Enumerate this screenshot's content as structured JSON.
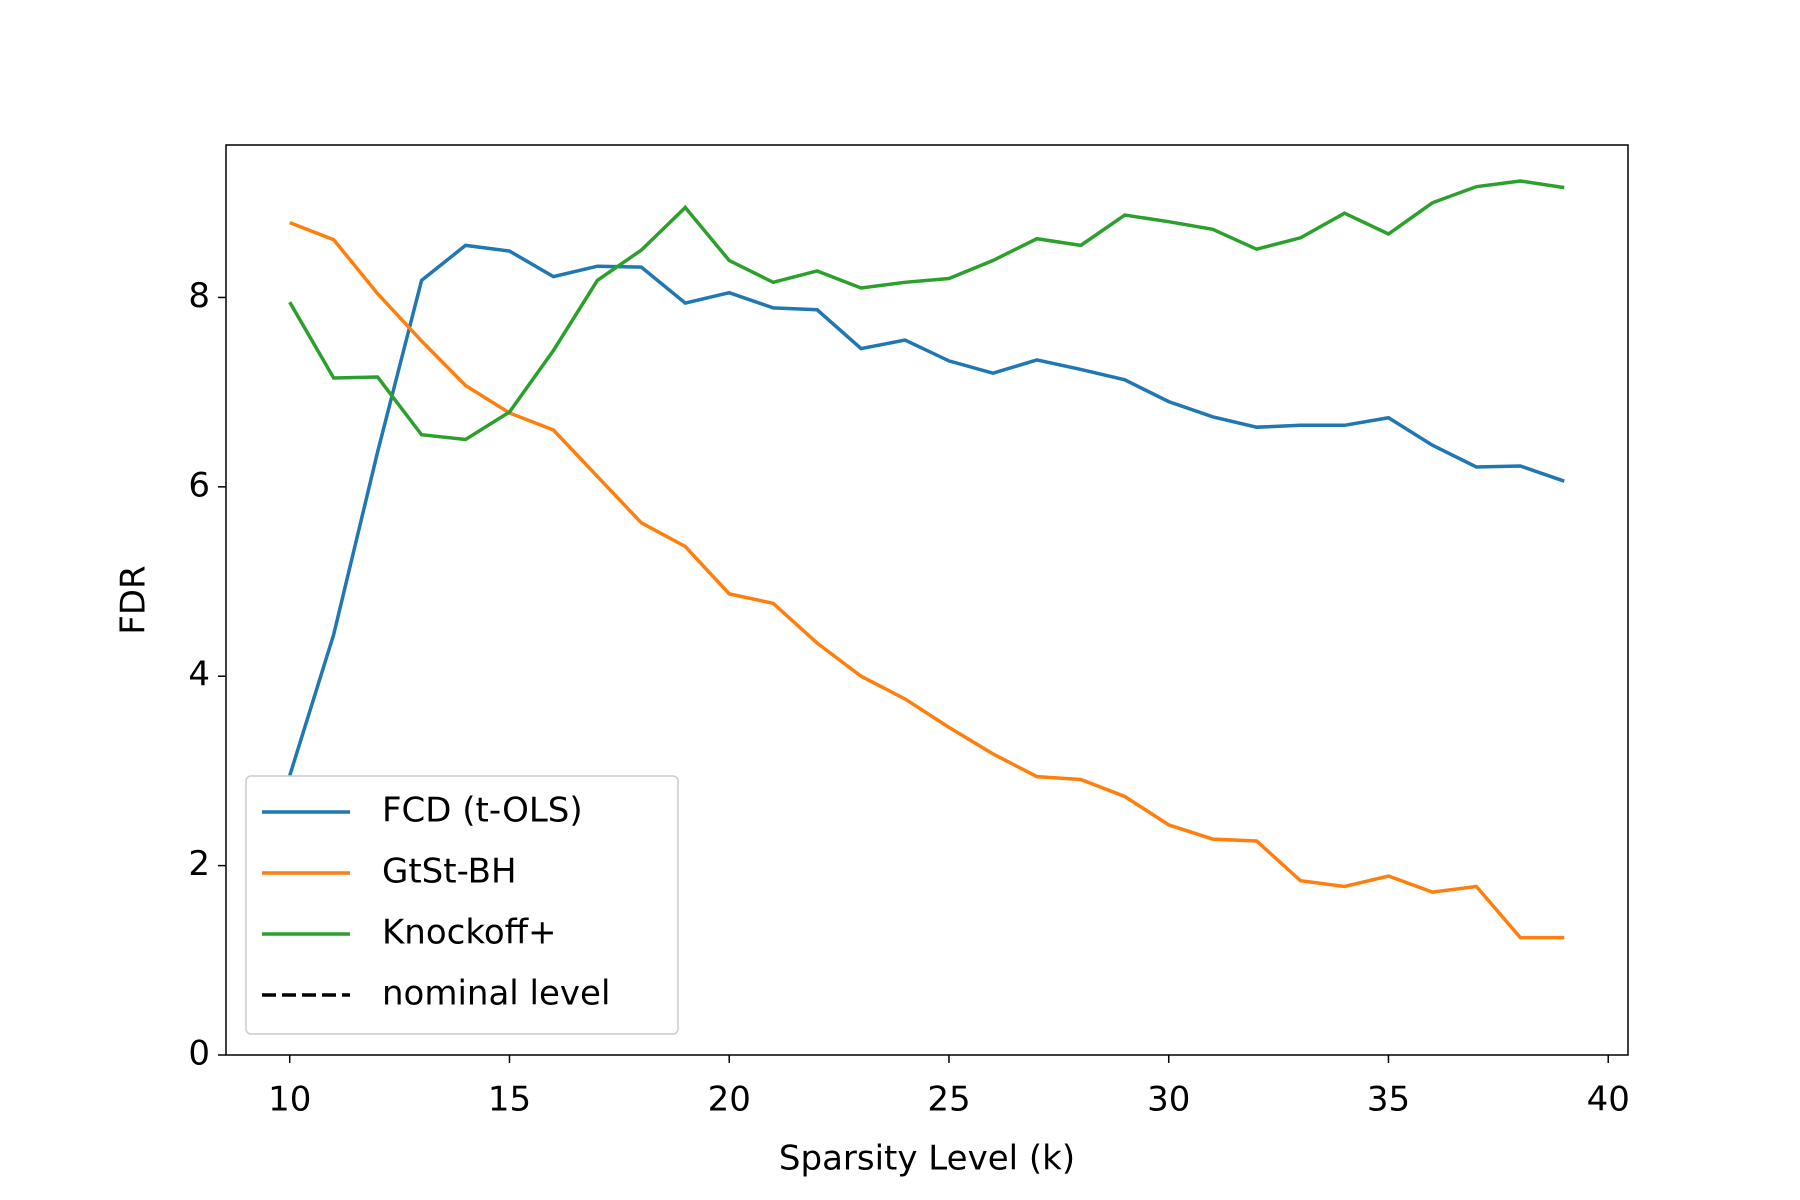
{
  "chart_data": {
    "type": "line",
    "xlabel": "Sparsity Level (k)",
    "ylabel": "FDR",
    "x": [
      10,
      11,
      12,
      13,
      14,
      15,
      16,
      17,
      18,
      19,
      20,
      21,
      22,
      23,
      24,
      25,
      26,
      27,
      28,
      29,
      30,
      31,
      32,
      33,
      34,
      35,
      36,
      37,
      38,
      39
    ],
    "series": [
      {
        "name": "FCD (t-OLS)",
        "color": "#1f77b4",
        "values": [
          2.95,
          4.44,
          6.37,
          8.18,
          8.55,
          8.49,
          8.22,
          8.33,
          8.32,
          7.94,
          8.05,
          7.89,
          7.87,
          7.46,
          7.55,
          7.33,
          7.2,
          7.34,
          7.24,
          7.13,
          6.9,
          6.74,
          6.63,
          6.65,
          6.65,
          6.73,
          6.44,
          6.21,
          6.22,
          6.06
        ]
      },
      {
        "name": "GtSt-BH",
        "color": "#ff7f0e",
        "values": [
          8.79,
          8.61,
          8.04,
          7.54,
          7.07,
          6.78,
          6.6,
          6.11,
          5.62,
          5.37,
          4.87,
          4.77,
          4.35,
          4.0,
          3.76,
          3.46,
          3.18,
          2.94,
          2.91,
          2.73,
          2.43,
          2.28,
          2.26,
          1.84,
          1.78,
          1.89,
          1.72,
          1.78,
          1.24,
          1.24
        ]
      },
      {
        "name": "Knockoff+",
        "color": "#2ca02c",
        "values": [
          7.95,
          7.15,
          7.16,
          6.55,
          6.5,
          6.79,
          7.44,
          8.18,
          8.5,
          8.95,
          8.39,
          8.16,
          8.28,
          8.1,
          8.16,
          8.2,
          8.39,
          8.62,
          8.55,
          8.87,
          8.8,
          8.72,
          8.51,
          8.63,
          8.89,
          8.67,
          9.0,
          9.17,
          9.23,
          9.16
        ]
      },
      {
        "name": "nominal level",
        "color": "#000000",
        "dashed": true,
        "values": [
          null,
          null,
          null,
          null,
          null,
          null,
          null,
          null,
          null,
          null,
          null,
          null,
          null,
          null,
          null,
          null,
          null,
          null,
          null,
          null,
          null,
          null,
          null,
          null,
          null,
          null,
          null,
          null,
          null,
          null
        ]
      }
    ],
    "xlim": [
      8.55,
      40.45
    ],
    "ylim": [
      0,
      9.61
    ],
    "xticks": [
      10,
      15,
      20,
      25,
      30,
      35,
      40
    ],
    "yticks": [
      0,
      2,
      4,
      6,
      8
    ],
    "legend": "lower left"
  }
}
